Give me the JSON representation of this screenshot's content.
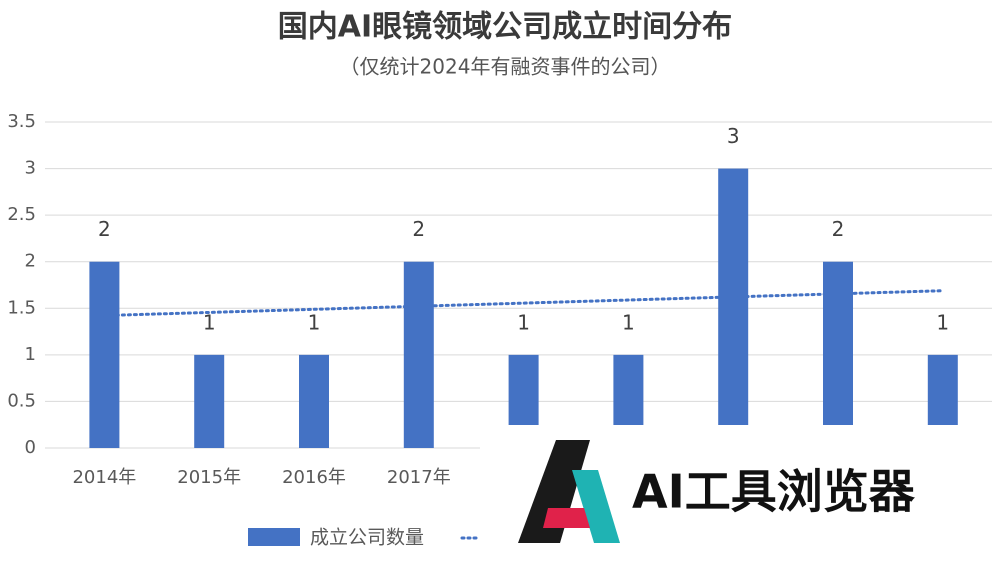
{
  "chart_data": {
    "type": "bar",
    "title": "国内AI眼镜领域公司成立时间分布",
    "subtitle": "（仅统计2024年有融资事件的公司）",
    "categories": [
      "2014年",
      "2015年",
      "2016年",
      "2017年",
      null,
      null,
      null,
      null,
      null
    ],
    "series": [
      {
        "name": "成立公司数量",
        "color": "#4472c4",
        "values": [
          2,
          1,
          1,
          2,
          1,
          1,
          3,
          2,
          1
        ]
      }
    ],
    "ylim": [
      0,
      3.5
    ],
    "yticks": [
      0,
      0.5,
      1,
      1.5,
      2,
      2.5,
      3,
      3.5
    ],
    "grid": true,
    "trendline": true,
    "data_labels": true,
    "legend": "bottom"
  },
  "overlay": {
    "logo_text": "AI工具浏览器"
  }
}
